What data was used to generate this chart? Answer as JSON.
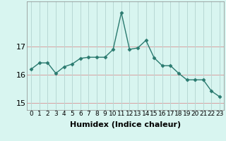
{
  "x": [
    0,
    1,
    2,
    3,
    4,
    5,
    6,
    7,
    8,
    9,
    10,
    11,
    12,
    13,
    14,
    15,
    16,
    17,
    18,
    19,
    20,
    21,
    22,
    23
  ],
  "y": [
    16.2,
    16.42,
    16.42,
    16.05,
    16.28,
    16.38,
    16.58,
    16.62,
    16.62,
    16.62,
    16.9,
    18.2,
    16.9,
    16.95,
    17.22,
    16.6,
    16.32,
    16.32,
    16.05,
    15.82,
    15.82,
    15.82,
    15.42,
    15.22
  ],
  "line_color": "#2a7a6f",
  "marker": "D",
  "marker_size": 2.5,
  "bg_color": "#d8f5f0",
  "grid_color_h": "#d9a0a0",
  "grid_color_v": "#b8d8d4",
  "xlabel": "Humidex (Indice chaleur)",
  "ylim": [
    14.75,
    18.6
  ],
  "yticks": [
    15,
    16,
    17
  ],
  "xticks": [
    0,
    1,
    2,
    3,
    4,
    5,
    6,
    7,
    8,
    9,
    10,
    11,
    12,
    13,
    14,
    15,
    16,
    17,
    18,
    19,
    20,
    21,
    22,
    23
  ],
  "xlim": [
    -0.5,
    23.5
  ],
  "xlabel_fontsize": 8,
  "ytick_fontsize": 8,
  "xtick_fontsize": 6.5,
  "linewidth": 1.0
}
